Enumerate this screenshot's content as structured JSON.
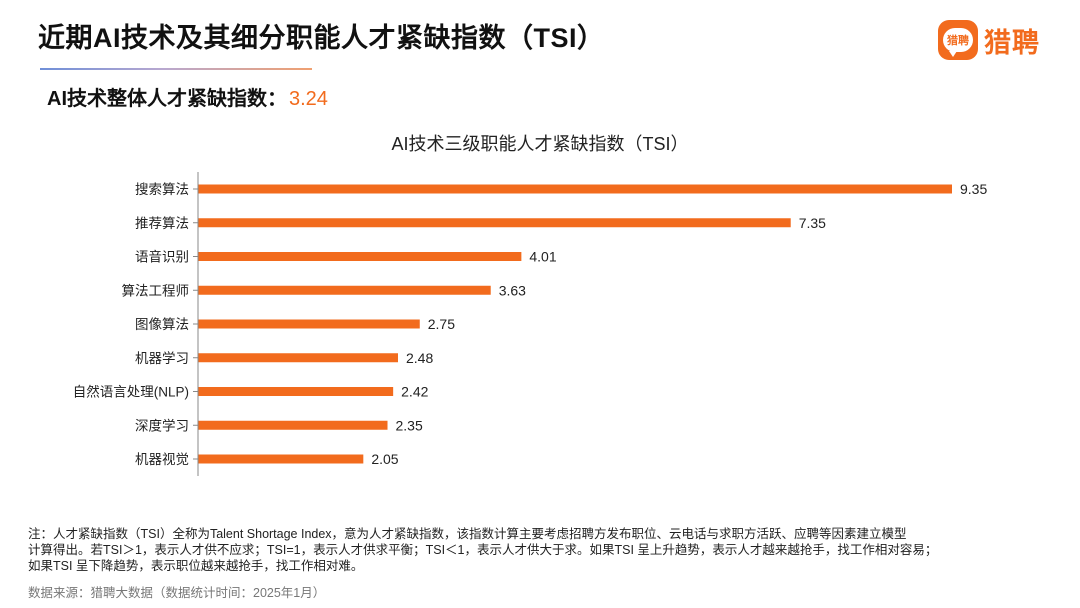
{
  "header": {
    "title": "近期AI技术及其细分职能人才紧缺指数（TSI）",
    "logo_badge_text": "猎聘",
    "logo_text": "猎聘"
  },
  "overall": {
    "label": "AI技术整体人才紧缺指数：",
    "value": "3.24"
  },
  "chart_data": {
    "type": "bar",
    "orientation": "horizontal",
    "title": "AI技术三级职能人才紧缺指数（TSI）",
    "categories": [
      "搜索算法",
      "推荐算法",
      "语音识别",
      "算法工程师",
      "图像算法",
      "机器学习",
      "自然语言处理(NLP)",
      "深度学习",
      "机器视觉"
    ],
    "values": [
      9.35,
      7.35,
      4.01,
      3.63,
      2.75,
      2.48,
      2.42,
      2.35,
      2.05
    ],
    "value_labels": [
      "9.35",
      "7.35",
      "4.01",
      "3.63",
      "2.75",
      "2.48",
      "2.42",
      "2.35",
      "2.05"
    ],
    "xlim": [
      0,
      9.35
    ],
    "bar_color": "#f26b1d",
    "grid": false,
    "legend": "none"
  },
  "notes": [
    "注：人才紧缺指数（TSI）全称为Talent Shortage Index，意为人才紧缺指数，该指数计算主要考虑招聘方发布职位、云电话与求职方活跃、应聘等因素建立模型",
    "计算得出。若TSI＞1，表示人才供不应求；TSI=1，表示人才供求平衡；TSI＜1，表示人才供大于求。如果TSI 呈上升趋势，表示人才越来越抢手，找工作相对容易；",
    "如果TSI 呈下降趋势，表示职位越来越抢手，找工作相对难。"
  ],
  "source": "数据来源：猎聘大数据（数据统计时间：2025年1月）"
}
